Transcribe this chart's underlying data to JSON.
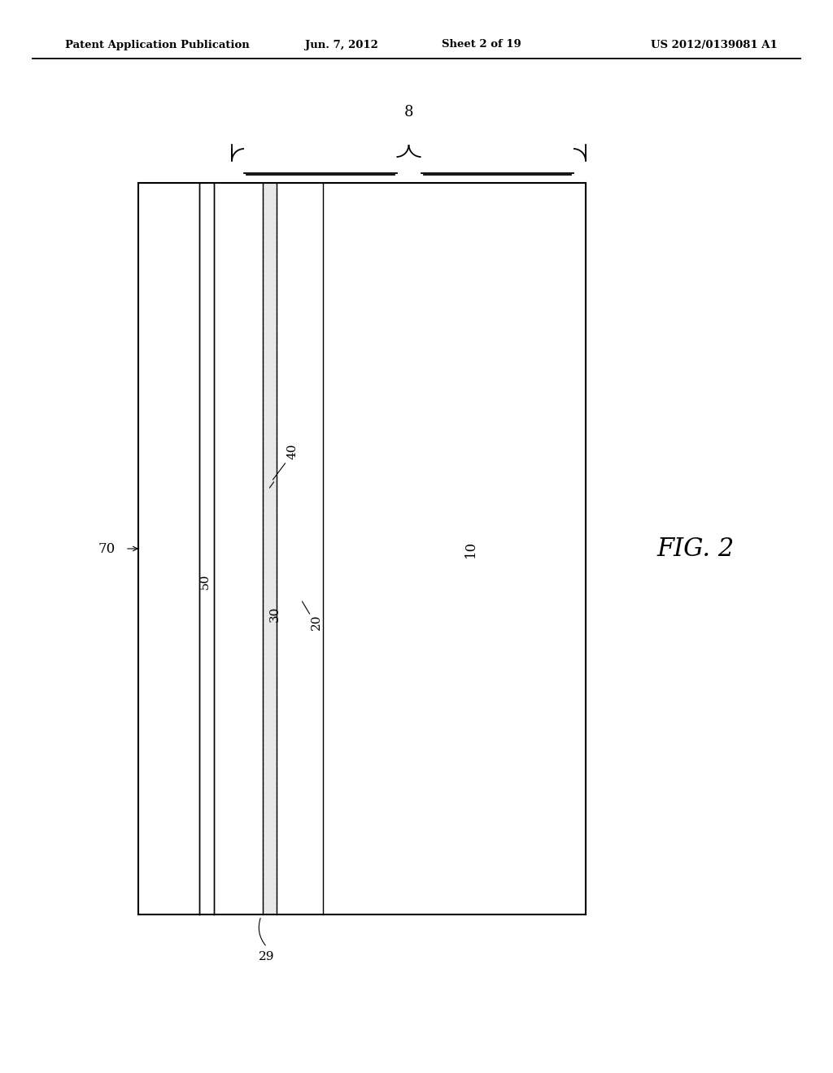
{
  "bg_color": "#ffffff",
  "header_text": "Patent Application Publication",
  "header_date": "Jun. 7, 2012",
  "header_sheet": "Sheet 2 of 19",
  "header_patent": "US 2012/0139081 A1",
  "fig_label": "FIG. 2",
  "brace_label": "8",
  "label_10": "10",
  "label_20": "20",
  "label_29": "29",
  "label_30": "30",
  "label_40": "40",
  "label_50": "50",
  "label_70": "70",
  "line_color": "#000000",
  "hatch_color": "#000000"
}
